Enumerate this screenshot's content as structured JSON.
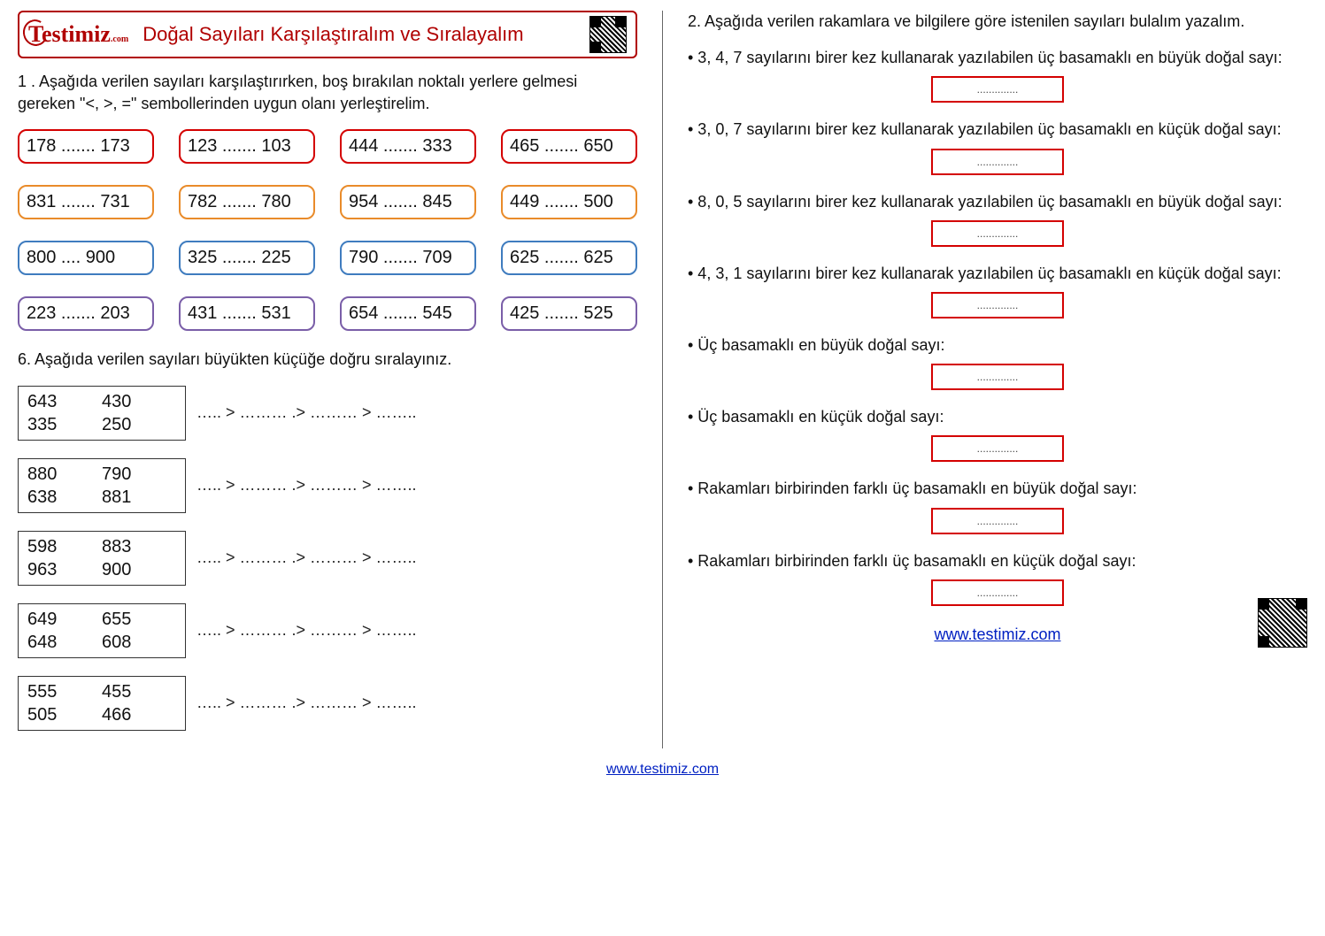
{
  "logo_text": "Testimiz",
  "logo_sub": ".com",
  "title": "Doğal Sayıları Karşılaştıralım ve Sıralayalım",
  "site_url": "www.testimiz.com",
  "q1_instr": "1 . Aşağıda verilen sayıları karşılaştırırken, boş bırakılan noktalı yerlere gelmesi gereken \"<, >, =\" sembollerinden uygun olanı yerleştirelim.",
  "q6_instr": "6. Aşağıda verilen sayıları büyükten küçüğe doğru sıralayınız.",
  "q2_instr": "2. Aşağıda verilen rakamlara ve bilgilere göre istenilen sayıları bulalım yazalım.",
  "row_colors": [
    "#d40000",
    "#e98b2a",
    "#3f7cbf",
    "#7a5ea8"
  ],
  "dots_fill": ".......",
  "answer_dots": "..............",
  "compare": [
    [
      {
        "a": "178",
        "b": "173"
      },
      {
        "a": "123",
        "b": "103"
      },
      {
        "a": "444",
        "b": "333"
      },
      {
        "a": "465",
        "b": "650"
      }
    ],
    [
      {
        "a": "831",
        "b": "731"
      },
      {
        "a": "782",
        "b": "780"
      },
      {
        "a": "954",
        "b": "845"
      },
      {
        "a": "449",
        "b": "500"
      }
    ],
    [
      {
        "a": "800",
        "b": "900",
        "d": "...."
      },
      {
        "a": "325",
        "b": "225"
      },
      {
        "a": "790",
        "b": "709"
      },
      {
        "a": "625",
        "b": "625"
      }
    ],
    [
      {
        "a": "223",
        "b": "203"
      },
      {
        "a": "431",
        "b": "531"
      },
      {
        "a": "654",
        "b": "545"
      },
      {
        "a": "425",
        "b": "525"
      }
    ]
  ],
  "sort_sets": [
    [
      "643",
      "430",
      "335",
      "250"
    ],
    [
      "880",
      "790",
      "638",
      "881"
    ],
    [
      "598",
      "883",
      "963",
      "900"
    ],
    [
      "649",
      "655",
      "648",
      "608"
    ],
    [
      "555",
      "455",
      "505",
      "466"
    ]
  ],
  "sort_pattern": "…..    >   ………    .>    ………    >   ……..",
  "q2_items": [
    "• 3, 4, 7 sayılarını birer kez kullanarak yazılabilen üç basamaklı en büyük doğal sayı:",
    "• 3, 0, 7 sayılarını birer kez kullanarak yazılabilen üç basamaklı en küçük doğal sayı:",
    "• 8, 0, 5 sayılarını birer kez kullanarak yazılabilen üç basamaklı en büyük doğal sayı:",
    "• 4, 3, 1  sayılarını birer kez kullanarak yazılabilen üç basamaklı en küçük doğal sayı:",
    "• Üç basamaklı en büyük doğal sayı:",
    "• Üç basamaklı en küçük doğal sayı:",
    "• Rakamları birbirinden farklı üç basamaklı en büyük doğal sayı:",
    "• Rakamları birbirinden farklı üç basamaklı en küçük doğal sayı:"
  ]
}
